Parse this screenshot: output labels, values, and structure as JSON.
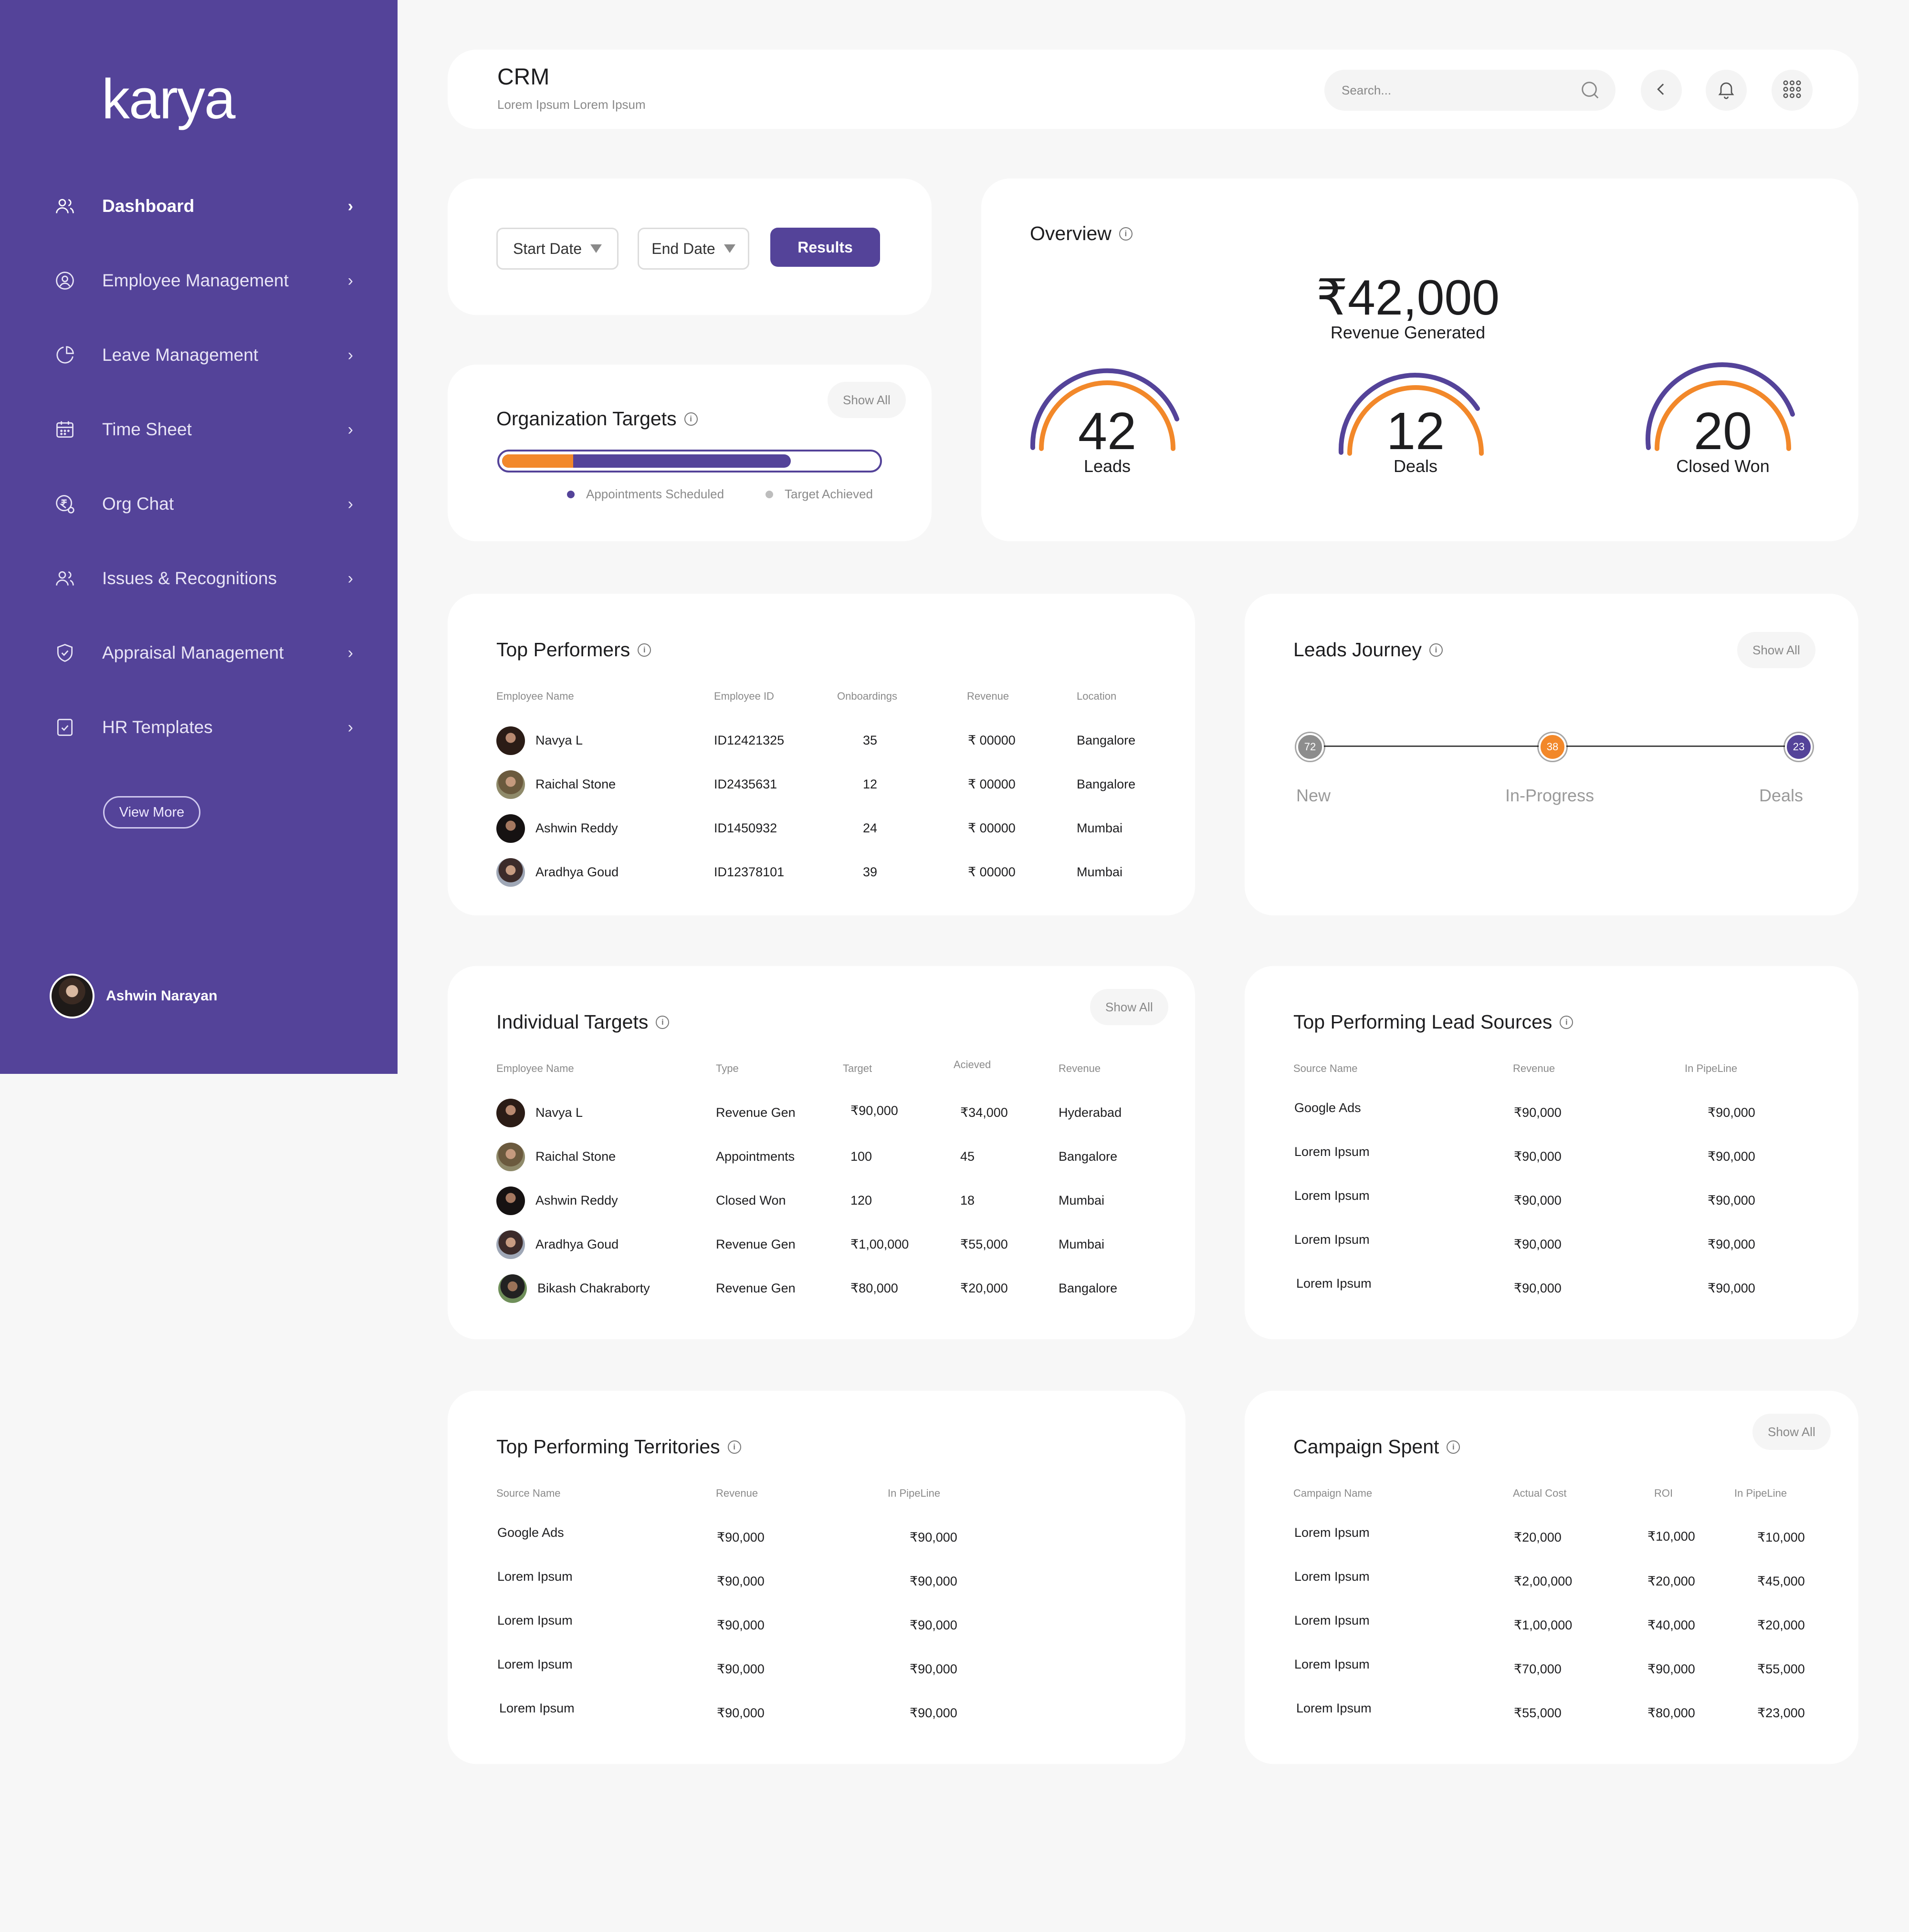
{
  "brand": "karya",
  "sidebar": {
    "items": [
      {
        "label": "Dashboard",
        "icon": "users-icon"
      },
      {
        "label": "Employee Management",
        "icon": "employee-icon"
      },
      {
        "label": "Leave Management",
        "icon": "pie-chart-icon"
      },
      {
        "label": "Time Sheet",
        "icon": "calendar-icon"
      },
      {
        "label": "Org Chat",
        "icon": "rupee-chat-icon"
      },
      {
        "label": "Issues & Recognitions",
        "icon": "users-icon"
      },
      {
        "label": "Appraisal Management",
        "icon": "shield-check-icon"
      },
      {
        "label": "HR Templates",
        "icon": "checklist-icon"
      }
    ],
    "view_more": "View More",
    "user_name": "Ashwin Narayan"
  },
  "header": {
    "title": "CRM",
    "subtitle": "Lorem Ipsum Lorem Ipsum",
    "search_placeholder": "Search..."
  },
  "filters": {
    "start_date": "Start Date",
    "end_date": "End Date",
    "results": "Results"
  },
  "org_targets": {
    "title": "Organization Targets",
    "show_all": "Show All",
    "legend": [
      "Appointments Scheduled",
      "Target Achieved"
    ],
    "orange_fraction": 0.19,
    "purple_fraction": 0.77,
    "colors": {
      "orange": "#f2882a",
      "purple": "#544399"
    }
  },
  "overview": {
    "title": "Overview",
    "revenue": "₹42,000",
    "revenue_label": "Revenue Generated",
    "metrics": [
      {
        "value": "42",
        "label": "Leads"
      },
      {
        "value": "12",
        "label": "Deals"
      },
      {
        "value": "20",
        "label": "Closed Won"
      }
    ]
  },
  "top_performers": {
    "title": "Top Performers",
    "headers": [
      "Employee Name",
      "Employee ID",
      "Onboardings",
      "Revenue",
      "Location"
    ],
    "rows": [
      [
        "Navya L",
        "ID12421325",
        "35",
        "₹ 00000",
        "Bangalore"
      ],
      [
        "Raichal Stone",
        "ID2435631",
        "12",
        "₹ 00000",
        "Bangalore"
      ],
      [
        "Ashwin Reddy",
        "ID1450932",
        "24",
        "₹ 00000",
        "Mumbai"
      ],
      [
        "Aradhya Goud",
        "ID12378101",
        "39",
        "₹ 00000",
        "Mumbai"
      ]
    ]
  },
  "leads_journey": {
    "title": "Leads Journey",
    "show_all": "Show All",
    "stages": [
      {
        "label": "New",
        "count": "72",
        "color": "#8d8d8d"
      },
      {
        "label": "In-Progress",
        "count": "38",
        "color": "#f2882a"
      },
      {
        "label": "Deals",
        "count": "23",
        "color": "#544399"
      }
    ]
  },
  "individual_targets": {
    "title": "Individual Targets",
    "show_all": "Show All",
    "headers": [
      "Employee Name",
      "Type",
      "Target",
      "Acieved",
      "Revenue"
    ],
    "rows": [
      [
        "Navya L",
        "Revenue Gen",
        "₹90,000",
        "₹34,000",
        "Hyderabad"
      ],
      [
        "Raichal Stone",
        "Appointments",
        "100",
        "45",
        "Bangalore"
      ],
      [
        "Ashwin Reddy",
        "Closed Won",
        "120",
        "18",
        "Mumbai"
      ],
      [
        "Aradhya Goud",
        "Revenue Gen",
        "₹1,00,000",
        "₹55,000",
        "Mumbai"
      ],
      [
        "Bikash Chakraborty",
        "Revenue Gen",
        "₹80,000",
        "₹20,000",
        "Bangalore"
      ]
    ]
  },
  "lead_sources": {
    "title": "Top Performing Lead Sources",
    "headers": [
      "Source Name",
      "Revenue",
      "In PipeLine"
    ],
    "rows": [
      [
        "Google Ads",
        "₹90,000",
        "₹90,000"
      ],
      [
        "Lorem Ipsum",
        "₹90,000",
        "₹90,000"
      ],
      [
        "Lorem Ipsum",
        "₹90,000",
        "₹90,000"
      ],
      [
        "Lorem Ipsum",
        "₹90,000",
        "₹90,000"
      ],
      [
        "Lorem Ipsum",
        "₹90,000",
        "₹90,000"
      ]
    ]
  },
  "territories": {
    "title": "Top Performing Territories",
    "headers": [
      "Source Name",
      "Revenue",
      "In PipeLine"
    ],
    "rows": [
      [
        "Google Ads",
        "₹90,000",
        "₹90,000"
      ],
      [
        "Lorem Ipsum",
        "₹90,000",
        "₹90,000"
      ],
      [
        "Lorem Ipsum",
        "₹90,000",
        "₹90,000"
      ],
      [
        "Lorem Ipsum",
        "₹90,000",
        "₹90,000"
      ],
      [
        "Lorem Ipsum",
        "₹90,000",
        "₹90,000"
      ]
    ]
  },
  "campaign": {
    "title": "Campaign Spent",
    "show_all": "Show All",
    "headers": [
      "Campaign Name",
      "Actual Cost",
      "ROI",
      "In PipeLine"
    ],
    "rows": [
      [
        "Lorem Ipsum",
        "₹20,000",
        "₹10,000",
        "₹10,000"
      ],
      [
        "Lorem Ipsum",
        "₹2,00,000",
        "₹20,000",
        "₹45,000"
      ],
      [
        "Lorem Ipsum",
        "₹1,00,000",
        "₹40,000",
        "₹20,000"
      ],
      [
        "Lorem Ipsum",
        "₹70,000",
        "₹90,000",
        "₹55,000"
      ],
      [
        "Lorem Ipsum",
        "₹55,000",
        "₹80,000",
        "₹23,000"
      ]
    ]
  },
  "colors": {
    "brand": "#544399",
    "accent": "#f2882a",
    "bg": "#f7f7f7"
  }
}
